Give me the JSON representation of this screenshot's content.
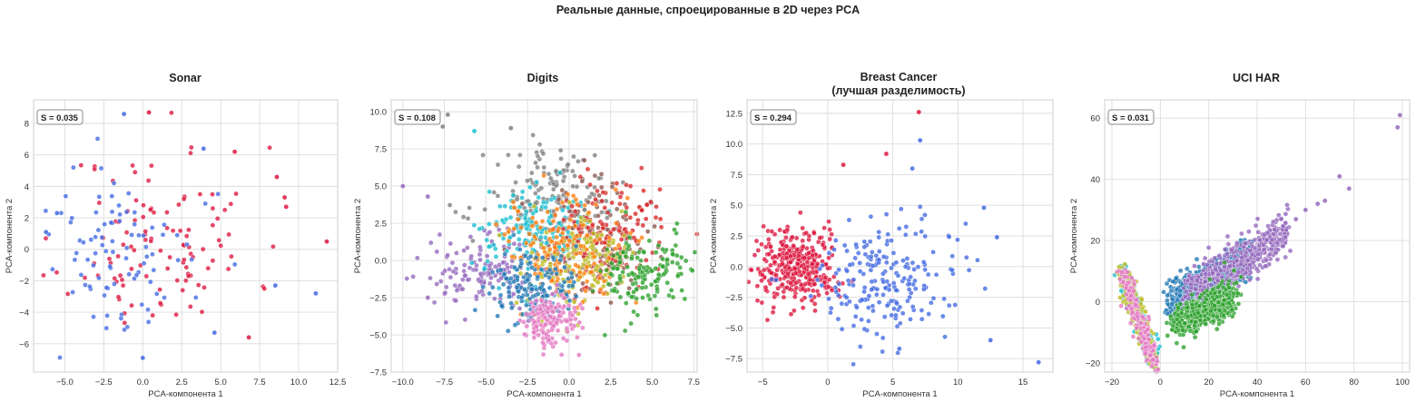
{
  "suptitle": "Реальные данные, спроецированные в 2D через PCA",
  "colors": {
    "red": "#dc143c",
    "blue": "#4169e1",
    "tab": [
      "#1f77b4",
      "#ff7f0e",
      "#2ca02c",
      "#d62728",
      "#9467bd",
      "#8c564b",
      "#e377c2",
      "#7f7f7f",
      "#bcbd22",
      "#17becf"
    ]
  },
  "chart_data": [
    {
      "type": "scatter",
      "title": "Sonar",
      "title2": "",
      "xlabel": "PCA-компонента 1",
      "ylabel": "PCA-компонента 2",
      "xlim": [
        -7,
        12.5
      ],
      "ylim": [
        -7.8,
        9.5
      ],
      "xticks": [
        -5.0,
        -2.5,
        0.0,
        2.5,
        5.0,
        7.5,
        10.0,
        12.5
      ],
      "yticks": [
        -6,
        -4,
        -2,
        0,
        2,
        4,
        6,
        8
      ],
      "xtick_labels": [
        "−5.0",
        "−2.5",
        "0.0",
        "2.5",
        "5.0",
        "7.5",
        "10.0",
        "12.5"
      ],
      "ytick_labels": [
        "−6",
        "−4",
        "−2",
        "0",
        "2",
        "4",
        "6",
        "8"
      ],
      "annotation": "S = 0.035",
      "grid": true,
      "clusters": [
        {
          "color_key": "red",
          "n": 110,
          "cx": 1.2,
          "cy": 0.5,
          "sx": 3.0,
          "sy": 3.0,
          "seed": 11
        },
        {
          "color_key": "blue",
          "n": 95,
          "cx": -1.5,
          "cy": -0.5,
          "sx": 2.6,
          "sy": 2.9,
          "seed": 12
        }
      ],
      "points": [
        {
          "x": 11.8,
          "y": 0.5,
          "c": "red"
        },
        {
          "x": 11.1,
          "y": -2.8,
          "c": "blue"
        },
        {
          "x": 9.1,
          "y": 3.3,
          "c": "red"
        },
        {
          "x": 9.2,
          "y": 2.7,
          "c": "red"
        },
        {
          "x": 8.6,
          "y": 4.6,
          "c": "red"
        },
        {
          "x": 8.5,
          "y": -2.3,
          "c": "blue"
        },
        {
          "x": 5.9,
          "y": 6.2,
          "c": "red"
        },
        {
          "x": 3.9,
          "y": 6.4,
          "c": "blue"
        },
        {
          "x": 0.4,
          "y": 8.7,
          "c": "red"
        },
        {
          "x": -1.2,
          "y": 8.6,
          "c": "blue"
        },
        {
          "x": 6.8,
          "y": -5.6,
          "c": "red"
        },
        {
          "x": 4.6,
          "y": -5.3,
          "c": "blue"
        },
        {
          "x": -6.2,
          "y": 1.1,
          "c": "blue"
        },
        {
          "x": -5.5,
          "y": 2.3,
          "c": "blue"
        },
        {
          "x": 0.0,
          "y": -6.9,
          "c": "blue"
        }
      ]
    },
    {
      "type": "scatter",
      "title": "Digits",
      "title2": "",
      "xlabel": "PCA-компонента 1",
      "ylabel": "PCA-компонента 2",
      "xlim": [
        -10.7,
        7.7
      ],
      "ylim": [
        -7.5,
        10.8
      ],
      "xticks": [
        -10.0,
        -7.5,
        -5.0,
        -2.5,
        0.0,
        2.5,
        5.0,
        7.5
      ],
      "yticks": [
        -7.5,
        -5.0,
        -2.5,
        0.0,
        2.5,
        5.0,
        7.5,
        10.0
      ],
      "xtick_labels": [
        "−10.0",
        "−7.5",
        "−5.0",
        "−2.5",
        "0.0",
        "2.5",
        "5.0",
        "7.5"
      ],
      "ytick_labels": [
        "−7.5",
        "−5.0",
        "−2.5",
        "0.0",
        "2.5",
        "5.0",
        "7.5",
        "10.0"
      ],
      "annotation": "S = 0.108",
      "grid": true,
      "clusters": [
        {
          "color_key": "tab.7",
          "n": 150,
          "cx": -1.0,
          "cy": 4.3,
          "sx": 2.0,
          "sy": 1.6,
          "seed": 21
        },
        {
          "color_key": "tab.4",
          "n": 150,
          "cx": -5.0,
          "cy": -0.8,
          "sx": 1.6,
          "sy": 1.2,
          "seed": 22
        },
        {
          "color_key": "tab.5",
          "n": 150,
          "cx": 1.0,
          "cy": 1.2,
          "sx": 1.8,
          "sy": 1.8,
          "seed": 23
        },
        {
          "color_key": "tab.9",
          "n": 150,
          "cx": -2.5,
          "cy": 2.0,
          "sx": 1.6,
          "sy": 1.6,
          "seed": 24
        },
        {
          "color_key": "tab.3",
          "n": 150,
          "cx": 2.5,
          "cy": 1.5,
          "sx": 1.6,
          "sy": 1.7,
          "seed": 25
        },
        {
          "color_key": "tab.8",
          "n": 150,
          "cx": 0.5,
          "cy": 0.2,
          "sx": 1.5,
          "sy": 1.5,
          "seed": 26
        },
        {
          "color_key": "tab.1",
          "n": 150,
          "cx": -0.5,
          "cy": 0.7,
          "sx": 1.8,
          "sy": 1.8,
          "seed": 27
        },
        {
          "color_key": "tab.0",
          "n": 150,
          "cx": -2.0,
          "cy": -1.8,
          "sx": 1.2,
          "sy": 1.2,
          "seed": 28
        },
        {
          "color_key": "tab.6",
          "n": 150,
          "cx": -1.3,
          "cy": -4.0,
          "sx": 0.8,
          "sy": 0.9,
          "seed": 29
        },
        {
          "color_key": "tab.2",
          "n": 150,
          "cx": 4.5,
          "cy": -0.8,
          "sx": 1.3,
          "sy": 1.3,
          "seed": 30
        }
      ],
      "points": [
        {
          "x": -7.3,
          "y": 9.8,
          "c": "tab.7"
        },
        {
          "x": -7.6,
          "y": 9.0,
          "c": "tab.7"
        },
        {
          "x": -10.0,
          "y": 5.0,
          "c": "tab.4"
        },
        {
          "x": -8.5,
          "y": 4.3,
          "c": "tab.4"
        },
        {
          "x": -3.5,
          "y": 8.9,
          "c": "tab.7"
        },
        {
          "x": -5.7,
          "y": 8.7,
          "c": "tab.9"
        },
        {
          "x": -8.5,
          "y": -2.5,
          "c": "tab.4"
        }
      ]
    },
    {
      "type": "scatter",
      "title": "Breast Cancer",
      "title2": "(лучшая разделимость)",
      "xlabel": "PCA-компонента 1",
      "ylabel": "PCA-компонента 2",
      "xlim": [
        -6.2,
        17.3
      ],
      "ylim": [
        -8.6,
        13.6
      ],
      "xticks": [
        -5,
        0,
        5,
        10,
        15
      ],
      "yticks": [
        -7.5,
        -5.0,
        -2.5,
        0.0,
        2.5,
        5.0,
        7.5,
        10.0,
        12.5
      ],
      "xtick_labels": [
        "−5",
        "0",
        "5",
        "10",
        "15"
      ],
      "ytick_labels": [
        "−7.5",
        "−5.0",
        "−2.5",
        "0.0",
        "2.5",
        "5.0",
        "7.5",
        "10.0",
        "12.5"
      ],
      "annotation": "S = 0.294",
      "grid": true,
      "clusters": [
        {
          "color_key": "red",
          "n": 350,
          "cx": -2.5,
          "cy": 0.0,
          "sx": 1.6,
          "sy": 1.5,
          "seed": 31
        },
        {
          "color_key": "blue",
          "n": 210,
          "cx": 4.0,
          "cy": -1.0,
          "sx": 3.0,
          "sy": 2.5,
          "seed": 32
        }
      ],
      "points": [
        {
          "x": 7.0,
          "y": 12.6,
          "c": "red"
        },
        {
          "x": 7.1,
          "y": 10.3,
          "c": "blue"
        },
        {
          "x": 16.2,
          "y": -7.8,
          "c": "blue"
        },
        {
          "x": 12.0,
          "y": 4.8,
          "c": "blue"
        },
        {
          "x": 13.0,
          "y": 2.4,
          "c": "blue"
        },
        {
          "x": 4.5,
          "y": 9.2,
          "c": "red"
        },
        {
          "x": 6.5,
          "y": 8.0,
          "c": "blue"
        },
        {
          "x": 1.2,
          "y": 8.3,
          "c": "red"
        },
        {
          "x": 5.5,
          "y": -6.7,
          "c": "blue"
        },
        {
          "x": 12.5,
          "y": -6.0,
          "c": "blue"
        }
      ]
    },
    {
      "type": "scatter",
      "title": "UCI HAR",
      "title2": "",
      "xlabel": "PCA-компонента 1",
      "ylabel": "PCA-компонента 2",
      "xlim": [
        -23,
        103
      ],
      "ylim": [
        -23,
        66
      ],
      "xticks": [
        -20,
        0,
        20,
        40,
        60,
        80,
        100
      ],
      "yticks": [
        -20,
        0,
        20,
        40,
        60
      ],
      "xtick_labels": [
        "−20",
        "0",
        "20",
        "40",
        "60",
        "80",
        "100"
      ],
      "ytick_labels": [
        "−20",
        "0",
        "20",
        "40",
        "60"
      ],
      "annotation": "S = 0.031",
      "grid": true,
      "clusters": [
        {
          "color_key": "tab.0",
          "n": 700,
          "band": [
            4,
            36,
            0.45,
            -2.0,
            3.2
          ],
          "seed": 41
        },
        {
          "color_key": "tab.4",
          "n": 500,
          "band": [
            10,
            52,
            0.45,
            -1.5,
            3.5
          ],
          "seed": 42
        },
        {
          "color_key": "tab.2",
          "n": 500,
          "band": [
            6,
            30,
            0.35,
            -9.0,
            3.0
          ],
          "seed": 43
        },
        {
          "color_key": "tab.9",
          "n": 220,
          "arm": true,
          "seed": 44
        },
        {
          "color_key": "tab.8",
          "n": 180,
          "arm": true,
          "seed": 45
        },
        {
          "color_key": "tab.6",
          "n": 180,
          "arm": true,
          "seed": 46
        }
      ],
      "points": [
        {
          "x": 99,
          "y": 61,
          "c": "tab.4"
        },
        {
          "x": 98,
          "y": 57,
          "c": "tab.4"
        },
        {
          "x": 74,
          "y": 41,
          "c": "tab.4"
        },
        {
          "x": 78,
          "y": 37,
          "c": "tab.4"
        },
        {
          "x": 65,
          "y": 32,
          "c": "tab.4"
        },
        {
          "x": 60,
          "y": 30,
          "c": "tab.4"
        },
        {
          "x": 68,
          "y": 33,
          "c": "tab.4"
        },
        {
          "x": 56,
          "y": 27,
          "c": "tab.4"
        }
      ]
    }
  ]
}
